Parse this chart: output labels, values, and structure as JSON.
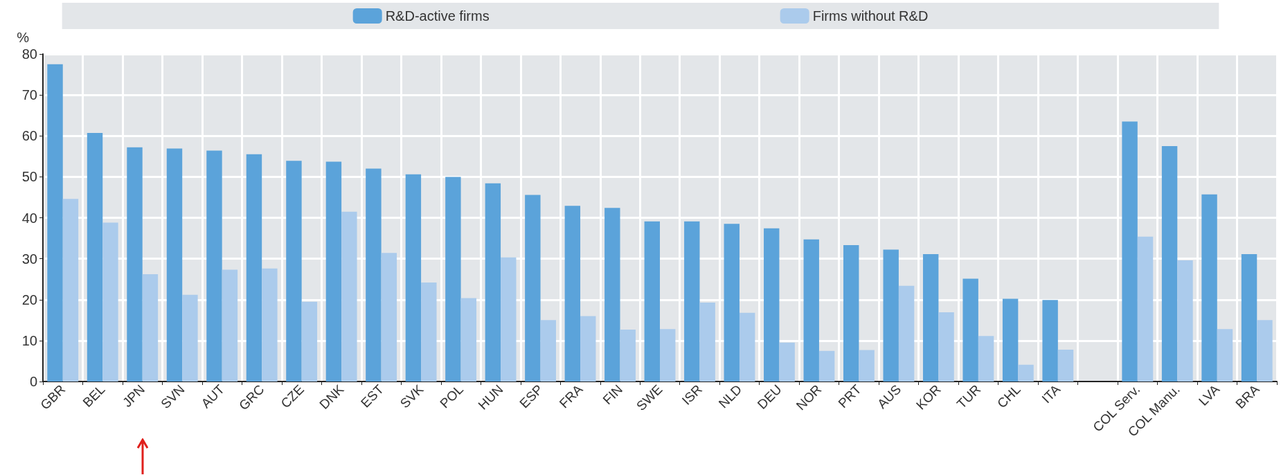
{
  "chart_data": {
    "type": "bar",
    "ylabel": "%",
    "categories": [
      "GBR",
      "BEL",
      "JPN",
      "SVN",
      "AUT",
      "GRC",
      "CZE",
      "DNK",
      "EST",
      "SVK",
      "POL",
      "HUN",
      "ESP",
      "FRA",
      "FIN",
      "SWE",
      "ISR",
      "NLD",
      "DEU",
      "NOR",
      "PRT",
      "AUS",
      "KOR",
      "TUR",
      "CHL",
      "ITA",
      null,
      "COL Serv.",
      "COL Manu.",
      "LVA",
      "BRA"
    ],
    "series": [
      {
        "name": "R&D-active firms",
        "color": "#5ba3da",
        "values": [
          77.5,
          60.7,
          57.2,
          56.9,
          56.4,
          55.5,
          53.9,
          53.7,
          52.0,
          50.6,
          50.0,
          48.4,
          45.6,
          42.9,
          42.4,
          39.1,
          39.1,
          38.5,
          37.4,
          34.7,
          33.3,
          32.2,
          31.1,
          25.1,
          20.2,
          19.9,
          null,
          63.5,
          57.5,
          45.7,
          31.1
        ]
      },
      {
        "name": "Firms without R&D",
        "color": "#abcbec",
        "values": [
          44.6,
          38.8,
          26.2,
          21.2,
          27.3,
          27.6,
          19.5,
          41.5,
          31.4,
          24.2,
          20.4,
          30.3,
          15.0,
          16.0,
          12.7,
          12.8,
          19.3,
          16.8,
          9.5,
          7.5,
          7.7,
          23.4,
          16.9,
          11.1,
          4.1,
          7.8,
          null,
          35.4,
          29.6,
          12.8,
          15.0
        ]
      }
    ],
    "ylim": [
      0,
      80
    ],
    "yticks": [
      0,
      10,
      20,
      30,
      40,
      50,
      60,
      70,
      80
    ],
    "grid": true,
    "legend": "top"
  }
}
